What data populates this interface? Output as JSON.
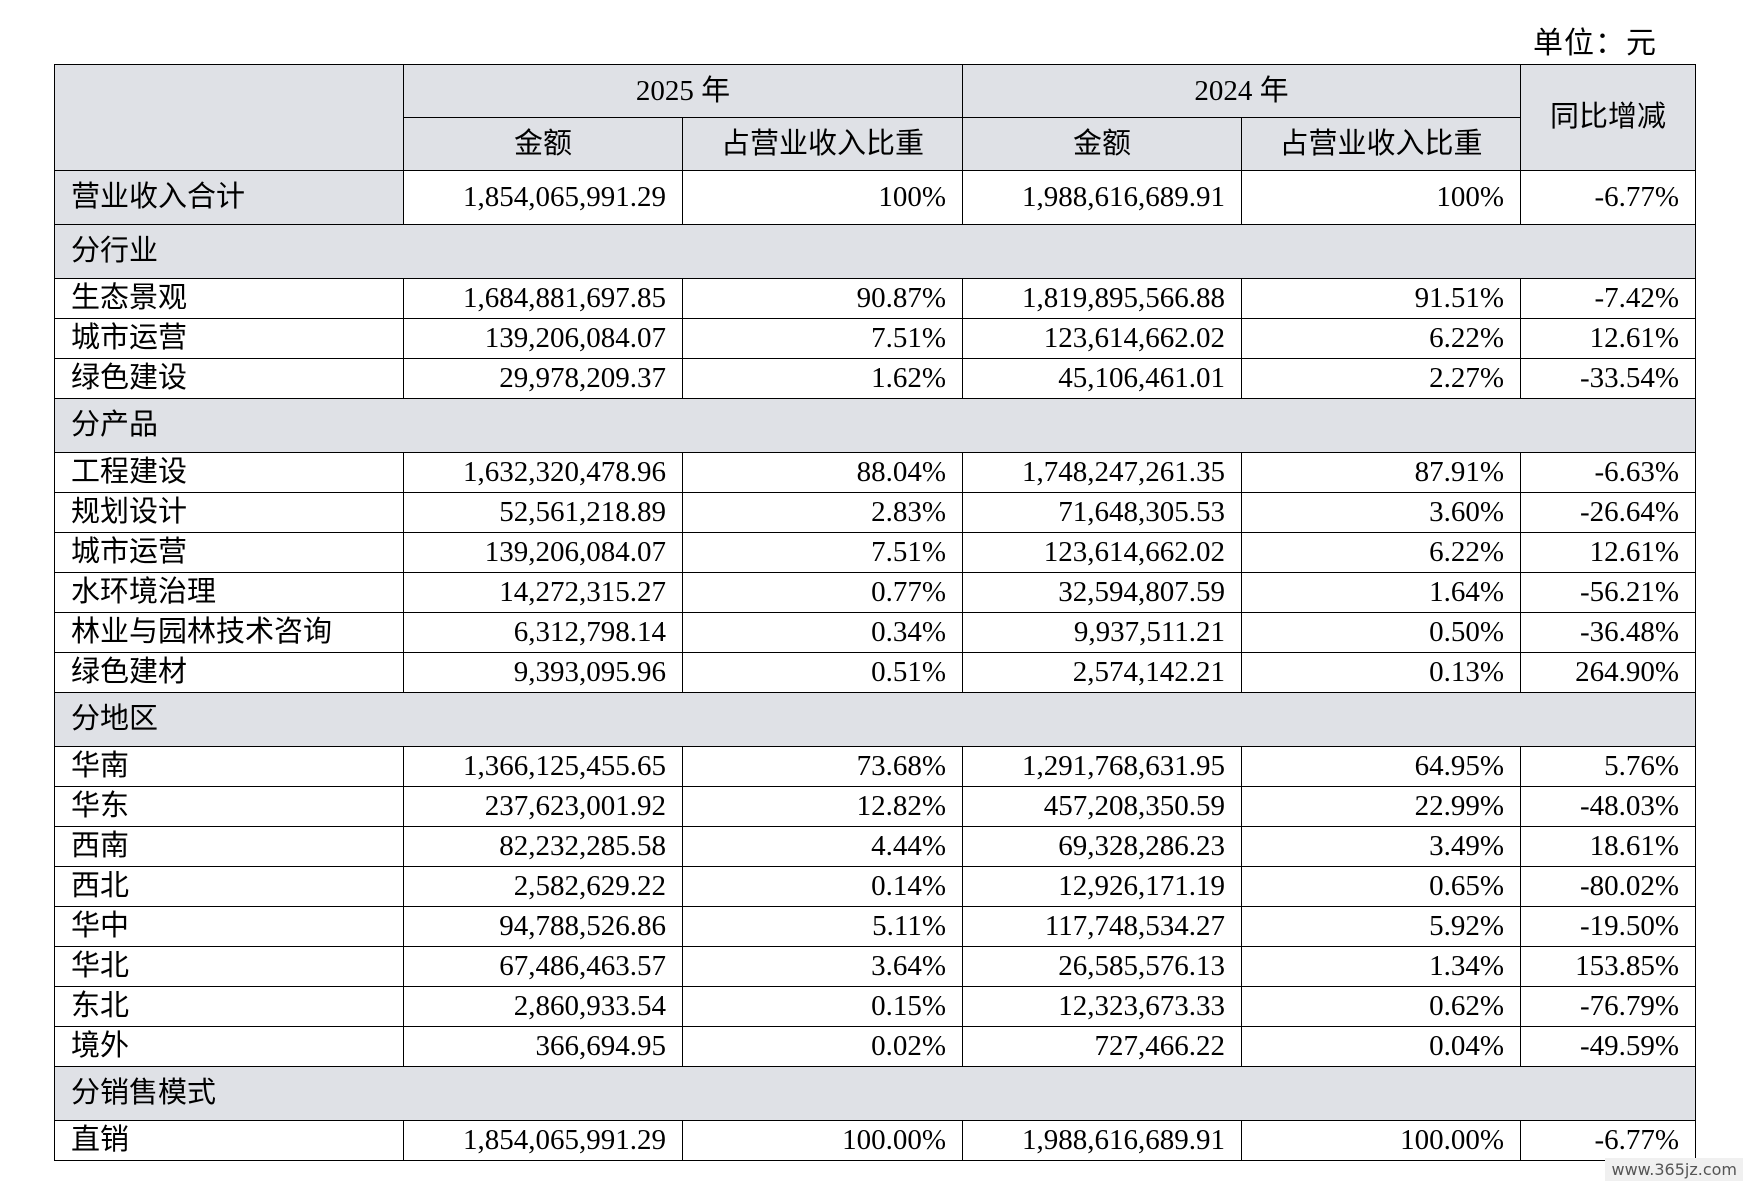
{
  "unit_label": "单位：元",
  "header": {
    "year_a": "2025 年",
    "year_b": "2024 年",
    "amount": "金额",
    "share": "占营业收入比重",
    "yoy": "同比增减"
  },
  "total": {
    "label": "营业收入合计",
    "a_amount": "1,854,065,991.29",
    "a_share": "100%",
    "b_amount": "1,988,616,689.91",
    "b_share": "100%",
    "yoy": "-6.77%"
  },
  "sections": [
    {
      "title": "分行业",
      "rows": [
        {
          "label": "生态景观",
          "a_amount": "1,684,881,697.85",
          "a_share": "90.87%",
          "b_amount": "1,819,895,566.88",
          "b_share": "91.51%",
          "yoy": "-7.42%"
        },
        {
          "label": "城市运营",
          "a_amount": "139,206,084.07",
          "a_share": "7.51%",
          "b_amount": "123,614,662.02",
          "b_share": "6.22%",
          "yoy": "12.61%"
        },
        {
          "label": "绿色建设",
          "a_amount": "29,978,209.37",
          "a_share": "1.62%",
          "b_amount": "45,106,461.01",
          "b_share": "2.27%",
          "yoy": "-33.54%"
        }
      ]
    },
    {
      "title": "分产品",
      "rows": [
        {
          "label": "工程建设",
          "a_amount": "1,632,320,478.96",
          "a_share": "88.04%",
          "b_amount": "1,748,247,261.35",
          "b_share": "87.91%",
          "yoy": "-6.63%"
        },
        {
          "label": "规划设计",
          "a_amount": "52,561,218.89",
          "a_share": "2.83%",
          "b_amount": "71,648,305.53",
          "b_share": "3.60%",
          "yoy": "-26.64%"
        },
        {
          "label": "城市运营",
          "a_amount": "139,206,084.07",
          "a_share": "7.51%",
          "b_amount": "123,614,662.02",
          "b_share": "6.22%",
          "yoy": "12.61%"
        },
        {
          "label": "水环境治理",
          "a_amount": "14,272,315.27",
          "a_share": "0.77%",
          "b_amount": "32,594,807.59",
          "b_share": "1.64%",
          "yoy": "-56.21%"
        },
        {
          "label": "林业与园林技术咨询",
          "a_amount": "6,312,798.14",
          "a_share": "0.34%",
          "b_amount": "9,937,511.21",
          "b_share": "0.50%",
          "yoy": "-36.48%"
        },
        {
          "label": "绿色建材",
          "a_amount": "9,393,095.96",
          "a_share": "0.51%",
          "b_amount": "2,574,142.21",
          "b_share": "0.13%",
          "yoy": "264.90%"
        }
      ]
    },
    {
      "title": "分地区",
      "rows": [
        {
          "label": "华南",
          "a_amount": "1,366,125,455.65",
          "a_share": "73.68%",
          "b_amount": "1,291,768,631.95",
          "b_share": "64.95%",
          "yoy": "5.76%"
        },
        {
          "label": "华东",
          "a_amount": "237,623,001.92",
          "a_share": "12.82%",
          "b_amount": "457,208,350.59",
          "b_share": "22.99%",
          "yoy": "-48.03%"
        },
        {
          "label": "西南",
          "a_amount": "82,232,285.58",
          "a_share": "4.44%",
          "b_amount": "69,328,286.23",
          "b_share": "3.49%",
          "yoy": "18.61%"
        },
        {
          "label": "西北",
          "a_amount": "2,582,629.22",
          "a_share": "0.14%",
          "b_amount": "12,926,171.19",
          "b_share": "0.65%",
          "yoy": "-80.02%"
        },
        {
          "label": "华中",
          "a_amount": "94,788,526.86",
          "a_share": "5.11%",
          "b_amount": "117,748,534.27",
          "b_share": "5.92%",
          "yoy": "-19.50%"
        },
        {
          "label": "华北",
          "a_amount": "67,486,463.57",
          "a_share": "3.64%",
          "b_amount": "26,585,576.13",
          "b_share": "1.34%",
          "yoy": "153.85%"
        },
        {
          "label": "东北",
          "a_amount": "2,860,933.54",
          "a_share": "0.15%",
          "b_amount": "12,323,673.33",
          "b_share": "0.62%",
          "yoy": "-76.79%"
        },
        {
          "label": "境外",
          "a_amount": "366,694.95",
          "a_share": "0.02%",
          "b_amount": "727,466.22",
          "b_share": "0.04%",
          "yoy": "-49.59%"
        }
      ]
    },
    {
      "title": "分销售模式",
      "rows": [
        {
          "label": "直销",
          "a_amount": "1,854,065,991.29",
          "a_share": "100.00%",
          "b_amount": "1,988,616,689.91",
          "b_share": "100.00%",
          "yoy": "-6.77%"
        }
      ]
    }
  ],
  "watermark": "www.365jz.com"
}
